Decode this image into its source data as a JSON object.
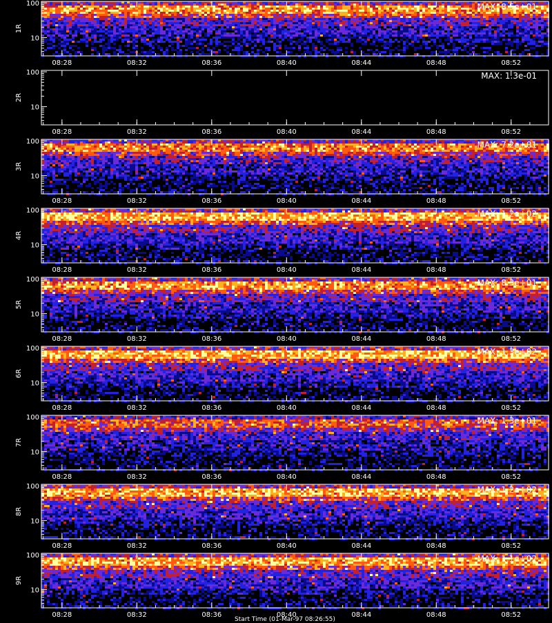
{
  "footer_text": "Start Time (01-Mar-97 08:26:55)",
  "palette": [
    "#000000",
    "#0a0a8c",
    "#2222e0",
    "#6a2ad8",
    "#c02030",
    "#ff5a10",
    "#ffb020",
    "#ffffa0"
  ],
  "chart_data": [
    {
      "type": "heatmap",
      "panel_label": "1R",
      "max_label": "MAX: 8.5e+01",
      "intensity": 0.85
    },
    {
      "type": "heatmap",
      "panel_label": "2R",
      "max_label": "MAX: 1.3e-01",
      "intensity": 0.0
    },
    {
      "type": "heatmap",
      "panel_label": "3R",
      "max_label": "MAX: 7.2e+01",
      "intensity": 0.8
    },
    {
      "type": "heatmap",
      "panel_label": "4R",
      "max_label": "MAX: 1.2e+02",
      "intensity": 0.92
    },
    {
      "type": "heatmap",
      "panel_label": "5R",
      "max_label": "MAX: 8.3e+01",
      "intensity": 0.85
    },
    {
      "type": "heatmap",
      "panel_label": "6R",
      "max_label": "MAX: 1.3e+02",
      "intensity": 0.92
    },
    {
      "type": "heatmap",
      "panel_label": "7R",
      "max_label": "MAX: 1.3e+01",
      "intensity": 0.7
    },
    {
      "type": "heatmap",
      "panel_label": "8R",
      "max_label": "MAX: 1.2e+02",
      "intensity": 0.9
    },
    {
      "type": "heatmap",
      "panel_label": "9R",
      "max_label": "MAX: 1.1e+02",
      "intensity": 0.9
    }
  ],
  "axes": {
    "x_ticks": [
      "08:28",
      "08:32",
      "08:36",
      "08:40",
      "08:44",
      "08:48",
      "08:52"
    ],
    "x_tick_minutes": [
      28,
      32,
      36,
      40,
      44,
      48,
      52
    ],
    "x_range_minutes": [
      26.9,
      54.0
    ],
    "y_scale": "log",
    "y_ticks": [
      "100",
      "10"
    ],
    "y_tick_values": [
      100,
      10
    ],
    "y_range": [
      3,
      110
    ]
  }
}
